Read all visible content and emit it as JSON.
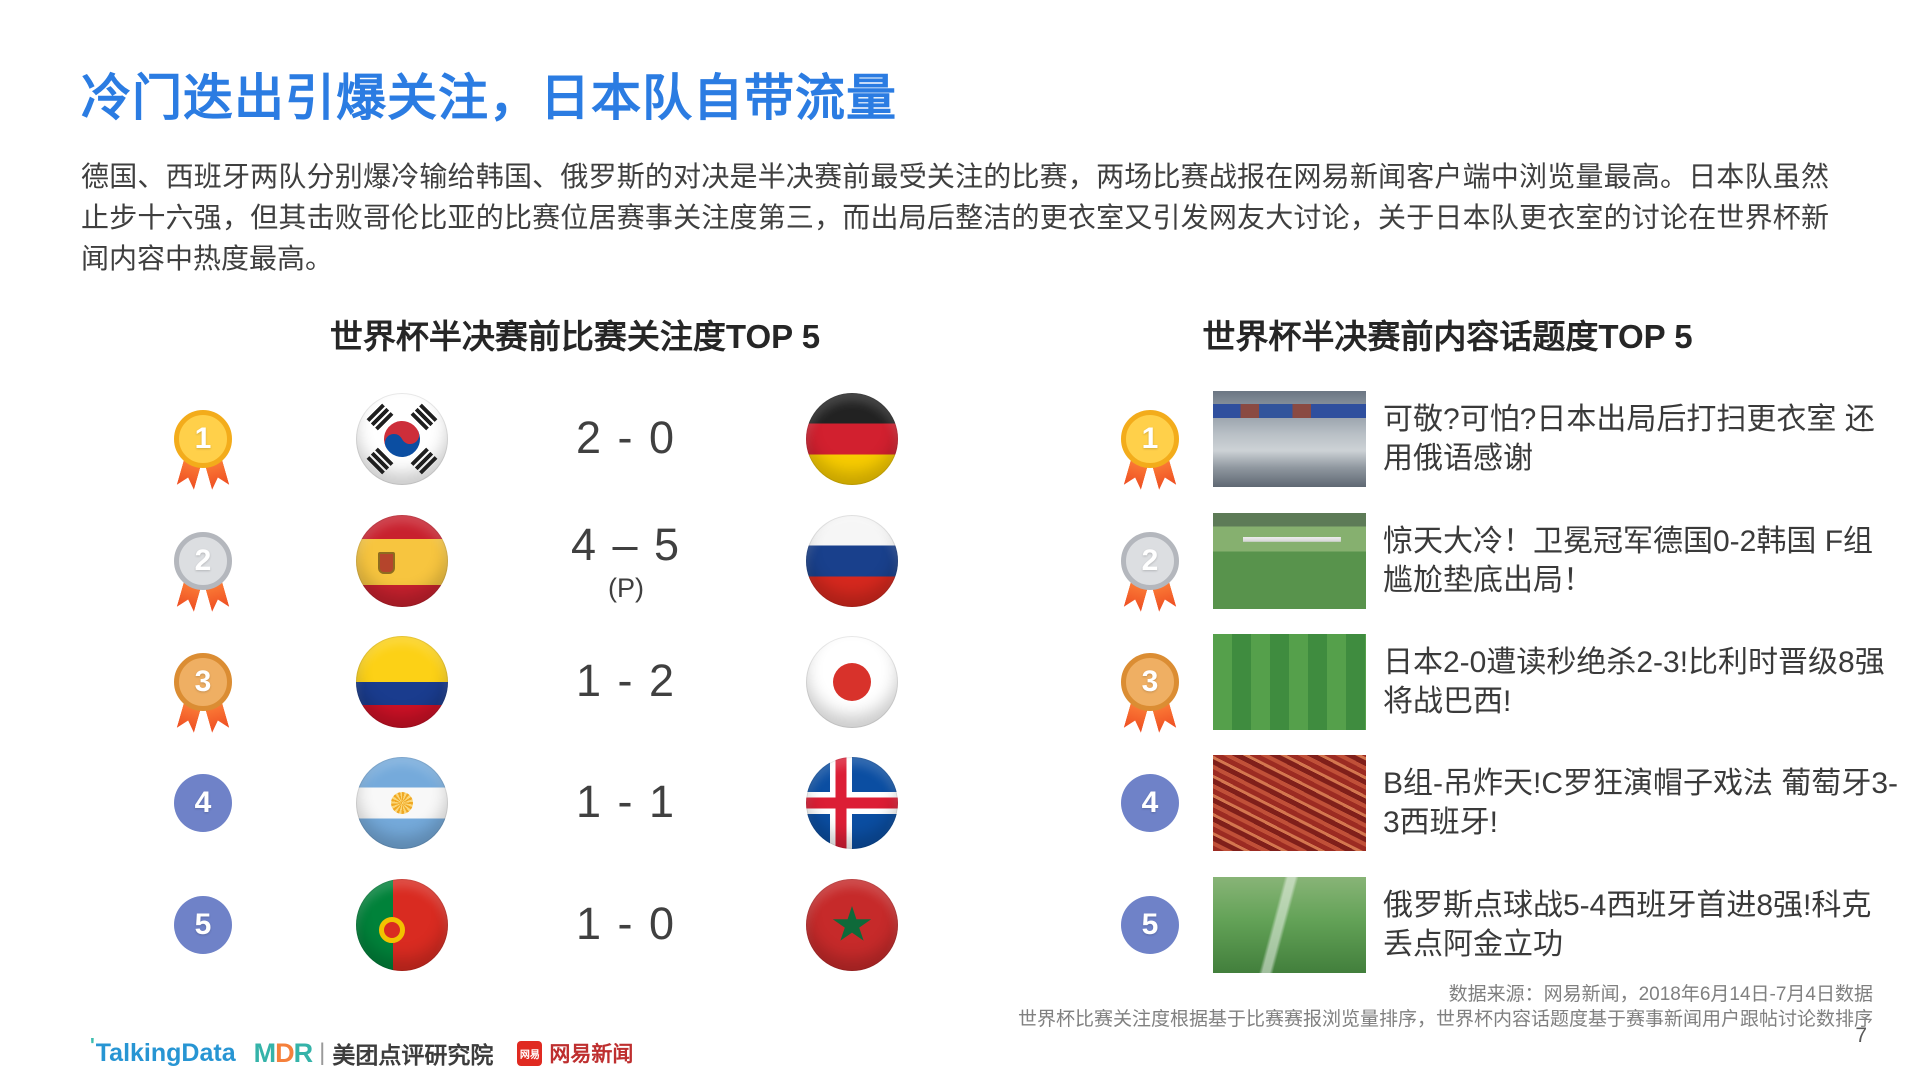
{
  "page": {
    "title": "冷门迭出引爆关注，日本队自带流量",
    "paragraph": "德国、西班牙两队分别爆冷输给韩国、俄罗斯的对决是半决赛前最受关注的比赛，两场比赛战报在网易新闻客户端中浏览量最高。日本队虽然止步十六强，但其击败哥伦比亚的比赛位居赛事关注度第三，而出局后整洁的更衣室又引发网友大讨论，关于日本队更衣室的讨论在世界杯新闻内容中热度最高。",
    "page_number": "7"
  },
  "left_section": {
    "header": "世界杯半决赛前比赛关注度TOP 5",
    "rows": [
      {
        "rank": "1",
        "home_team": "south-korea",
        "score": "2 - 0",
        "score_note": "",
        "away_team": "germany"
      },
      {
        "rank": "2",
        "home_team": "spain",
        "score": "4 – 5",
        "score_note": "(P)",
        "away_team": "russia"
      },
      {
        "rank": "3",
        "home_team": "colombia",
        "score": "1 - 2",
        "score_note": "",
        "away_team": "japan"
      },
      {
        "rank": "4",
        "home_team": "argentina",
        "score": "1 - 1",
        "score_note": "",
        "away_team": "iceland"
      },
      {
        "rank": "5",
        "home_team": "portugal",
        "score": "1 - 0",
        "score_note": "",
        "away_team": "morocco"
      }
    ]
  },
  "right_section": {
    "header": "世界杯半决赛前内容话题度TOP 5",
    "rows": [
      {
        "rank": "1",
        "thumbnail": "japan-locker-room-photo",
        "headline": "可敬?可怕?日本出局后打扫更衣室 还用俄语感谢"
      },
      {
        "rank": "2",
        "thumbnail": "germany-korea-goal-photo",
        "headline": "惊天大冷！卫冕冠军德国0-2韩国 F组尴尬垫底出局！"
      },
      {
        "rank": "3",
        "thumbnail": "japan-belgium-pitch-photo",
        "headline": "日本2-0遭读秒绝杀2-3!比利时晋级8强将战巴西!"
      },
      {
        "rank": "4",
        "thumbnail": "portugal-spain-fans-photo",
        "headline": "B组-吊炸天!C罗狂演帽子戏法 葡萄牙3-3西班牙!"
      },
      {
        "rank": "5",
        "thumbnail": "russia-spain-celebration-photo",
        "headline": "俄罗斯点球战5-4西班牙首进8强!科克丢点阿金立功"
      }
    ]
  },
  "footer": {
    "source_line1": "数据来源：网易新闻，2018年6月14日-7月4日数据",
    "source_line2": "世界杯比赛关注度根据基于比赛赛报浏览量排序，世界杯内容话题度基于赛事新闻用户跟帖讨论数排序",
    "logos": {
      "talkingdata": "TalkingData",
      "mdr_letters": [
        "M",
        "D",
        "R"
      ],
      "mdr_divider": "|",
      "meituan_label": "美团点评研究院",
      "netease_badge": "网易",
      "netease_label": "网易新闻"
    }
  },
  "colors": {
    "title_blue": "#2B7CE2",
    "body_text": "#3F3F3F",
    "medal_gold": "#F3AC1B",
    "medal_silver": "#B4B7BD",
    "medal_bronze": "#DB8D33",
    "medal_plain_blue": "#6F82C8",
    "ribbon_orange": "#EE4D22"
  }
}
